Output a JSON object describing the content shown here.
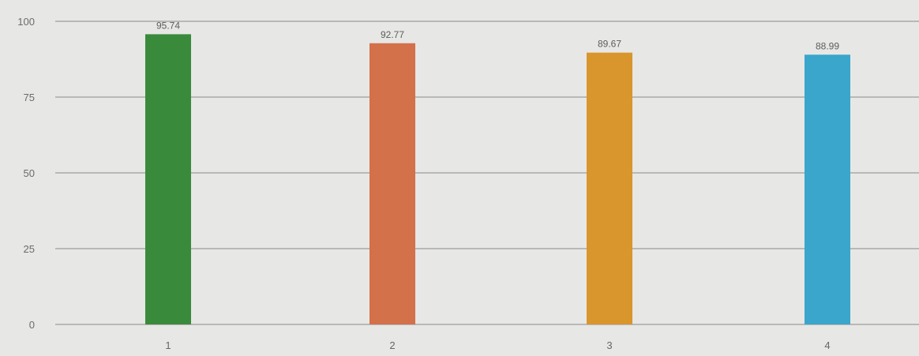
{
  "chart_data": {
    "type": "bar",
    "title": "",
    "xlabel": "",
    "ylabel": "",
    "categories": [
      "1",
      "2",
      "3",
      "4"
    ],
    "values": [
      95.74,
      92.77,
      89.67,
      88.99
    ],
    "data_labels": [
      "95.74",
      "92.77",
      "89.67",
      "88.99"
    ],
    "yticks": [
      "0",
      "25",
      "50",
      "75",
      "100"
    ],
    "ytick_values": [
      0,
      25,
      50,
      75,
      100
    ],
    "ylim": [
      0,
      100
    ],
    "grid": true,
    "legend": "none",
    "colors": [
      "#3a8a3c",
      "#d2714a",
      "#d9962c",
      "#3aa6cc"
    ]
  }
}
